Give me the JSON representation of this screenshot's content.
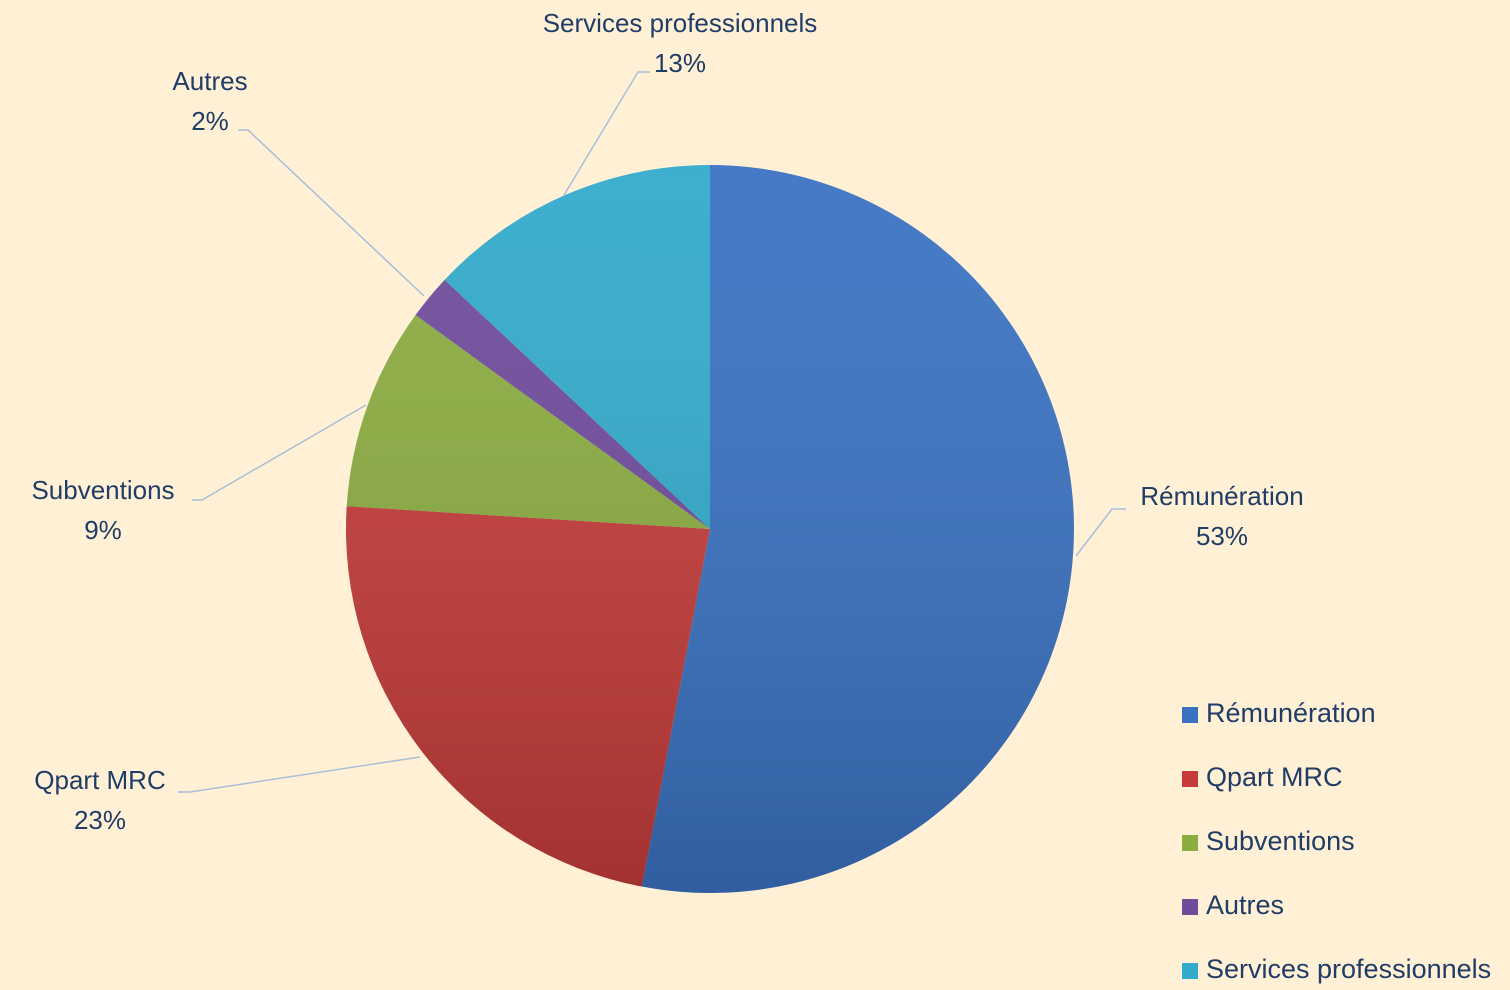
{
  "chart_data": {
    "type": "pie",
    "categories": [
      "Rémunération",
      "Qpart MRC",
      "Subventions",
      "Autres",
      "Services professionnels"
    ],
    "values": [
      53,
      23,
      9,
      2,
      13
    ],
    "value_labels": [
      "53%",
      "23%",
      "9%",
      "2%",
      "13%"
    ],
    "colors": [
      "#3a72c2",
      "#c53c3a",
      "#8bad40",
      "#6f4b9c",
      "#31aacb"
    ],
    "start_angle": 0,
    "direction": "clockwise",
    "legend": "bottom-right"
  }
}
